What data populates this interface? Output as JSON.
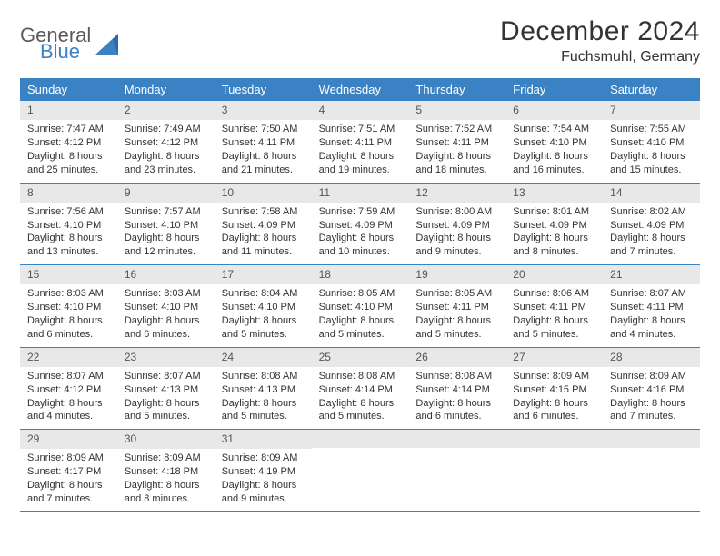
{
  "brand": {
    "word1": "General",
    "word2": "Blue"
  },
  "title": "December 2024",
  "location": "Fuchsmuhl, Germany",
  "colors": {
    "header_bg": "#3b82c4",
    "daynum_bg": "#e8e8e8",
    "text": "#333333",
    "page_bg": "#ffffff"
  },
  "day_names": [
    "Sunday",
    "Monday",
    "Tuesday",
    "Wednesday",
    "Thursday",
    "Friday",
    "Saturday"
  ],
  "weeks": [
    [
      {
        "n": "1",
        "sr": "Sunrise: 7:47 AM",
        "ss": "Sunset: 4:12 PM",
        "d1": "Daylight: 8 hours",
        "d2": "and 25 minutes."
      },
      {
        "n": "2",
        "sr": "Sunrise: 7:49 AM",
        "ss": "Sunset: 4:12 PM",
        "d1": "Daylight: 8 hours",
        "d2": "and 23 minutes."
      },
      {
        "n": "3",
        "sr": "Sunrise: 7:50 AM",
        "ss": "Sunset: 4:11 PM",
        "d1": "Daylight: 8 hours",
        "d2": "and 21 minutes."
      },
      {
        "n": "4",
        "sr": "Sunrise: 7:51 AM",
        "ss": "Sunset: 4:11 PM",
        "d1": "Daylight: 8 hours",
        "d2": "and 19 minutes."
      },
      {
        "n": "5",
        "sr": "Sunrise: 7:52 AM",
        "ss": "Sunset: 4:11 PM",
        "d1": "Daylight: 8 hours",
        "d2": "and 18 minutes."
      },
      {
        "n": "6",
        "sr": "Sunrise: 7:54 AM",
        "ss": "Sunset: 4:10 PM",
        "d1": "Daylight: 8 hours",
        "d2": "and 16 minutes."
      },
      {
        "n": "7",
        "sr": "Sunrise: 7:55 AM",
        "ss": "Sunset: 4:10 PM",
        "d1": "Daylight: 8 hours",
        "d2": "and 15 minutes."
      }
    ],
    [
      {
        "n": "8",
        "sr": "Sunrise: 7:56 AM",
        "ss": "Sunset: 4:10 PM",
        "d1": "Daylight: 8 hours",
        "d2": "and 13 minutes."
      },
      {
        "n": "9",
        "sr": "Sunrise: 7:57 AM",
        "ss": "Sunset: 4:10 PM",
        "d1": "Daylight: 8 hours",
        "d2": "and 12 minutes."
      },
      {
        "n": "10",
        "sr": "Sunrise: 7:58 AM",
        "ss": "Sunset: 4:09 PM",
        "d1": "Daylight: 8 hours",
        "d2": "and 11 minutes."
      },
      {
        "n": "11",
        "sr": "Sunrise: 7:59 AM",
        "ss": "Sunset: 4:09 PM",
        "d1": "Daylight: 8 hours",
        "d2": "and 10 minutes."
      },
      {
        "n": "12",
        "sr": "Sunrise: 8:00 AM",
        "ss": "Sunset: 4:09 PM",
        "d1": "Daylight: 8 hours",
        "d2": "and 9 minutes."
      },
      {
        "n": "13",
        "sr": "Sunrise: 8:01 AM",
        "ss": "Sunset: 4:09 PM",
        "d1": "Daylight: 8 hours",
        "d2": "and 8 minutes."
      },
      {
        "n": "14",
        "sr": "Sunrise: 8:02 AM",
        "ss": "Sunset: 4:09 PM",
        "d1": "Daylight: 8 hours",
        "d2": "and 7 minutes."
      }
    ],
    [
      {
        "n": "15",
        "sr": "Sunrise: 8:03 AM",
        "ss": "Sunset: 4:10 PM",
        "d1": "Daylight: 8 hours",
        "d2": "and 6 minutes."
      },
      {
        "n": "16",
        "sr": "Sunrise: 8:03 AM",
        "ss": "Sunset: 4:10 PM",
        "d1": "Daylight: 8 hours",
        "d2": "and 6 minutes."
      },
      {
        "n": "17",
        "sr": "Sunrise: 8:04 AM",
        "ss": "Sunset: 4:10 PM",
        "d1": "Daylight: 8 hours",
        "d2": "and 5 minutes."
      },
      {
        "n": "18",
        "sr": "Sunrise: 8:05 AM",
        "ss": "Sunset: 4:10 PM",
        "d1": "Daylight: 8 hours",
        "d2": "and 5 minutes."
      },
      {
        "n": "19",
        "sr": "Sunrise: 8:05 AM",
        "ss": "Sunset: 4:11 PM",
        "d1": "Daylight: 8 hours",
        "d2": "and 5 minutes."
      },
      {
        "n": "20",
        "sr": "Sunrise: 8:06 AM",
        "ss": "Sunset: 4:11 PM",
        "d1": "Daylight: 8 hours",
        "d2": "and 5 minutes."
      },
      {
        "n": "21",
        "sr": "Sunrise: 8:07 AM",
        "ss": "Sunset: 4:11 PM",
        "d1": "Daylight: 8 hours",
        "d2": "and 4 minutes."
      }
    ],
    [
      {
        "n": "22",
        "sr": "Sunrise: 8:07 AM",
        "ss": "Sunset: 4:12 PM",
        "d1": "Daylight: 8 hours",
        "d2": "and 4 minutes."
      },
      {
        "n": "23",
        "sr": "Sunrise: 8:07 AM",
        "ss": "Sunset: 4:13 PM",
        "d1": "Daylight: 8 hours",
        "d2": "and 5 minutes."
      },
      {
        "n": "24",
        "sr": "Sunrise: 8:08 AM",
        "ss": "Sunset: 4:13 PM",
        "d1": "Daylight: 8 hours",
        "d2": "and 5 minutes."
      },
      {
        "n": "25",
        "sr": "Sunrise: 8:08 AM",
        "ss": "Sunset: 4:14 PM",
        "d1": "Daylight: 8 hours",
        "d2": "and 5 minutes."
      },
      {
        "n": "26",
        "sr": "Sunrise: 8:08 AM",
        "ss": "Sunset: 4:14 PM",
        "d1": "Daylight: 8 hours",
        "d2": "and 6 minutes."
      },
      {
        "n": "27",
        "sr": "Sunrise: 8:09 AM",
        "ss": "Sunset: 4:15 PM",
        "d1": "Daylight: 8 hours",
        "d2": "and 6 minutes."
      },
      {
        "n": "28",
        "sr": "Sunrise: 8:09 AM",
        "ss": "Sunset: 4:16 PM",
        "d1": "Daylight: 8 hours",
        "d2": "and 7 minutes."
      }
    ],
    [
      {
        "n": "29",
        "sr": "Sunrise: 8:09 AM",
        "ss": "Sunset: 4:17 PM",
        "d1": "Daylight: 8 hours",
        "d2": "and 7 minutes."
      },
      {
        "n": "30",
        "sr": "Sunrise: 8:09 AM",
        "ss": "Sunset: 4:18 PM",
        "d1": "Daylight: 8 hours",
        "d2": "and 8 minutes."
      },
      {
        "n": "31",
        "sr": "Sunrise: 8:09 AM",
        "ss": "Sunset: 4:19 PM",
        "d1": "Daylight: 8 hours",
        "d2": "and 9 minutes."
      },
      null,
      null,
      null,
      null
    ]
  ]
}
